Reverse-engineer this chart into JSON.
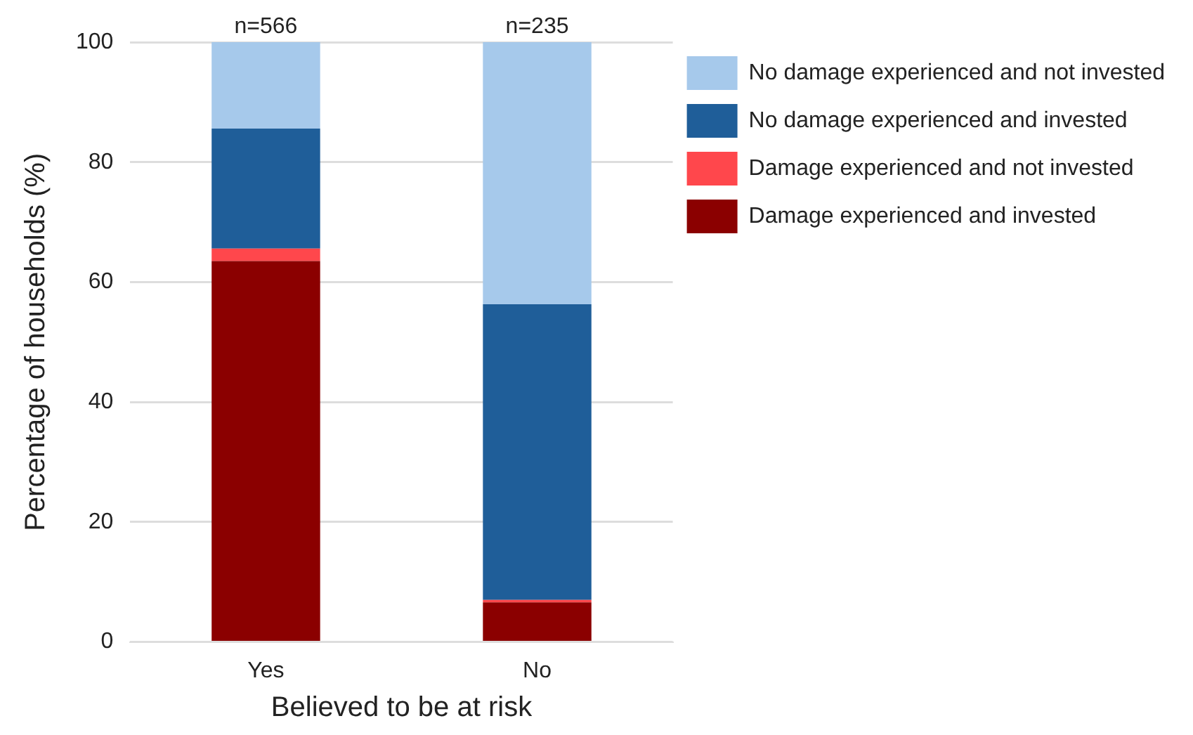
{
  "chart_data": {
    "type": "bar",
    "stacked": true,
    "xlabel": "Believed to be at risk",
    "ylabel": "Percentage of households (%)",
    "categories": [
      "Yes",
      "No"
    ],
    "series": [
      {
        "name": "Damage experienced and invested",
        "color": "#8b0000",
        "values": [
          63.5,
          6.6
        ]
      },
      {
        "name": "Damage experienced and not invested",
        "color": "#ff474c",
        "values": [
          2.1,
          0.4
        ]
      },
      {
        "name": "No damage experienced and invested",
        "color": "#1f5e99",
        "values": [
          20.0,
          49.3
        ]
      },
      {
        "name": "No damage experienced and not invested",
        "color": "#a6c9eb",
        "values": [
          14.4,
          43.7
        ]
      }
    ],
    "ylim": [
      0,
      100
    ],
    "yticks": [
      0,
      20,
      40,
      60,
      80,
      100
    ],
    "grid": "y",
    "legend": "right",
    "annotations": [
      {
        "text": "n=566",
        "x": "Yes",
        "y": 100
      },
      {
        "text": "n=235",
        "x": "No",
        "y": 100
      }
    ]
  }
}
